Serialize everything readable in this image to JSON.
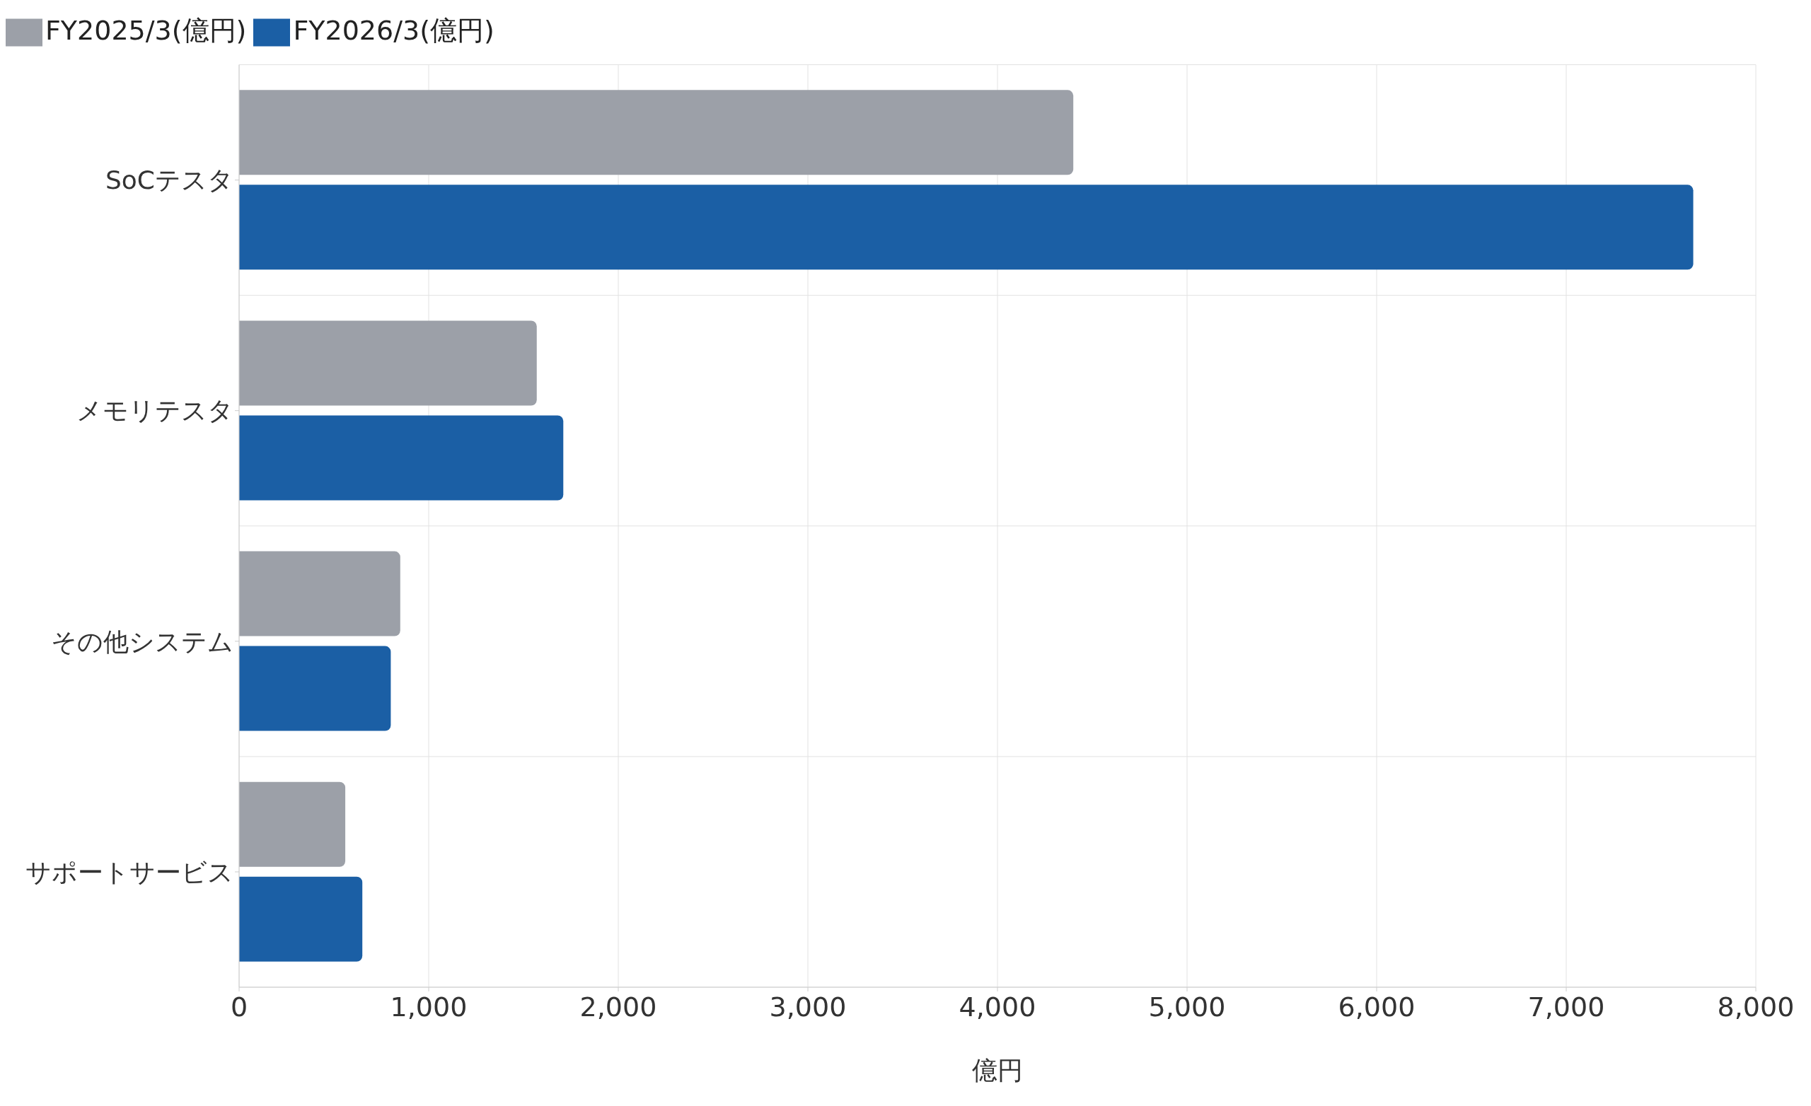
{
  "chart_data": {
    "type": "bar",
    "orientation": "horizontal",
    "xlabel": "億円",
    "categories": [
      "SoCテスタ",
      "メモリテスタ",
      "その他システム",
      "サポートサービス"
    ],
    "series": [
      {
        "name": "FY2025/3(億円)",
        "color": "#9ca0a8",
        "values": [
          4400,
          1570,
          850,
          560
        ]
      },
      {
        "name": "FY2026/3(億円)",
        "color": "#1b5fa5",
        "values": [
          7670,
          1710,
          800,
          650
        ]
      }
    ],
    "xlim": [
      0,
      8000
    ],
    "xticks": [
      {
        "value": 0,
        "label": "0"
      },
      {
        "value": 1000,
        "label": "1,000"
      },
      {
        "value": 2000,
        "label": "2,000"
      },
      {
        "value": 3000,
        "label": "3,000"
      },
      {
        "value": 4000,
        "label": "4,000"
      },
      {
        "value": 5000,
        "label": "5,000"
      },
      {
        "value": 6000,
        "label": "6,000"
      },
      {
        "value": 7000,
        "label": "7,000"
      },
      {
        "value": 8000,
        "label": "8,000"
      }
    ],
    "grid": true,
    "legend": "top left"
  }
}
